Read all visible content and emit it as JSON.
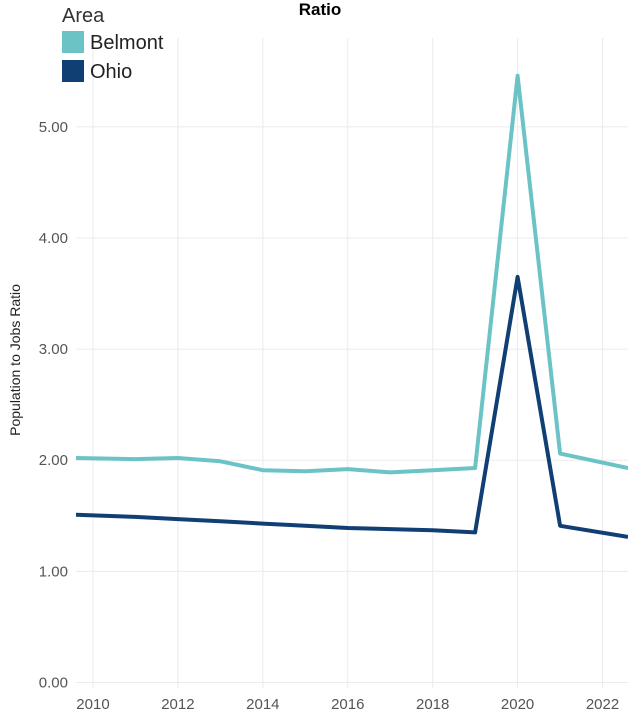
{
  "chart_data": {
    "type": "line",
    "title": "Ratio",
    "xlabel": "",
    "ylabel": "Population to Jobs Ratio",
    "xlim": [
      2009.6,
      2022.6
    ],
    "ylim": [
      -0.05,
      5.8
    ],
    "x_ticks": [
      2010,
      2012,
      2014,
      2016,
      2018,
      2020,
      2022
    ],
    "y_ticks": [
      0,
      1,
      2,
      3,
      4,
      5
    ],
    "y_tick_labels": [
      "0.00",
      "1.00",
      "2.00",
      "3.00",
      "4.00",
      "5.00"
    ],
    "grid": true,
    "legend": {
      "title": "Area",
      "placement": "top-left"
    },
    "x": [
      2009.6,
      2011,
      2012,
      2013,
      2014,
      2015,
      2016,
      2017,
      2018,
      2019,
      2020,
      2021,
      2022.6
    ],
    "series": [
      {
        "name": "Belmont",
        "color": "#6cc3c6",
        "values": [
          2.02,
          2.01,
          2.02,
          1.99,
          1.91,
          1.9,
          1.92,
          1.89,
          1.91,
          1.93,
          5.46,
          2.06,
          1.93
        ]
      },
      {
        "name": "Ohio",
        "color": "#103f73",
        "values": [
          1.51,
          1.49,
          1.47,
          1.45,
          1.43,
          1.41,
          1.39,
          1.38,
          1.37,
          1.35,
          3.65,
          1.41,
          1.31
        ]
      }
    ]
  }
}
